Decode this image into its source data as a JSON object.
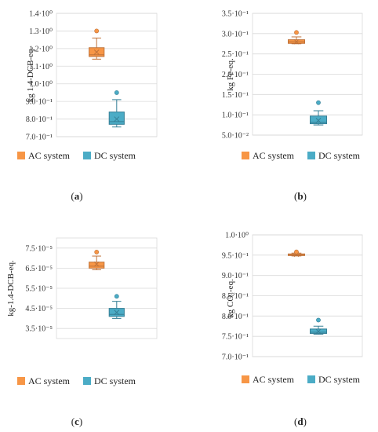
{
  "colors": {
    "ac": "#F79646",
    "dc": "#4BACC6",
    "ac_edge": "#C0733A",
    "dc_edge": "#357F96",
    "grid": "#D9D9D9"
  },
  "chart_data": [
    {
      "id": "a",
      "type": "box",
      "panel_label_prefix": "(",
      "panel_label_letter": "a",
      "panel_label_suffix": ")",
      "ylabel": "kg 1.4-DCB-eq.",
      "ylim": [
        0.7,
        1.4
      ],
      "yticks": [
        {
          "value": 0.7,
          "label": "7.0·10⁻¹"
        },
        {
          "value": 0.8,
          "label": "8.0·10⁻¹"
        },
        {
          "value": 0.9,
          "label": "9.0·10⁻¹"
        },
        {
          "value": 1.0,
          "label": "1.0·10⁰"
        },
        {
          "value": 1.1,
          "label": "1.1·10⁰"
        },
        {
          "value": 1.2,
          "label": "1.2·10⁰"
        },
        {
          "value": 1.3,
          "label": "1.3·10⁰"
        },
        {
          "value": 1.4,
          "label": "1.4·10⁰"
        }
      ],
      "series": [
        {
          "name": "AC system",
          "min": 1.14,
          "q1": 1.155,
          "median": 1.165,
          "q3": 1.205,
          "max": 1.26,
          "mean": 1.18,
          "outliers": [
            1.3
          ]
        },
        {
          "name": "DC system",
          "min": 0.755,
          "q1": 0.77,
          "median": 0.785,
          "q3": 0.84,
          "max": 0.91,
          "mean": 0.8,
          "outliers": [
            0.95
          ]
        }
      ]
    },
    {
      "id": "b",
      "type": "box",
      "panel_label_prefix": "(",
      "panel_label_letter": "b",
      "panel_label_suffix": ")",
      "ylabel": "kg Fe-eq.",
      "ylim": [
        0.05,
        0.35
      ],
      "yticks": [
        {
          "value": 0.05,
          "label": "5.0·10⁻²"
        },
        {
          "value": 0.1,
          "label": "1.0·10⁻¹"
        },
        {
          "value": 0.15,
          "label": "1.5·10⁻¹"
        },
        {
          "value": 0.2,
          "label": "2.0·10⁻¹"
        },
        {
          "value": 0.25,
          "label": "2.5·10⁻¹"
        },
        {
          "value": 0.3,
          "label": "3.0·10⁻¹"
        },
        {
          "value": 0.35,
          "label": "3.5·10⁻¹"
        }
      ],
      "series": [
        {
          "name": "AC system",
          "min": 0.275,
          "q1": 0.276,
          "median": 0.28,
          "q3": 0.285,
          "max": 0.292,
          "mean": 0.28,
          "outliers": [
            0.303
          ]
        },
        {
          "name": "DC system",
          "min": 0.075,
          "q1": 0.078,
          "median": 0.082,
          "q3": 0.097,
          "max": 0.11,
          "mean": 0.086,
          "outliers": [
            0.13
          ]
        }
      ]
    },
    {
      "id": "c",
      "type": "box",
      "panel_label_prefix": "(",
      "panel_label_letter": "c",
      "panel_label_suffix": ")",
      "ylabel": "kg-1.4-DCB-eq.",
      "ylim": [
        3.0,
        8.0
      ],
      "yticks": [
        {
          "value": 3.5,
          "label": "3.5·10⁻⁵"
        },
        {
          "value": 4.5,
          "label": "4.5·10⁻⁵"
        },
        {
          "value": 5.5,
          "label": "5.5·10⁻⁵"
        },
        {
          "value": 6.5,
          "label": "6.5·10⁻⁵"
        },
        {
          "value": 7.5,
          "label": "7.5·10⁻⁵"
        }
      ],
      "series": [
        {
          "name": "AC system",
          "min": 6.42,
          "q1": 6.5,
          "median": 6.6,
          "q3": 6.8,
          "max": 7.1,
          "mean": 6.7,
          "outliers": [
            7.3
          ]
        },
        {
          "name": "DC system",
          "min": 4.0,
          "q1": 4.1,
          "median": 4.2,
          "q3": 4.5,
          "max": 4.85,
          "mean": 4.3,
          "outliers": [
            5.1
          ]
        }
      ]
    },
    {
      "id": "d",
      "type": "box",
      "panel_label_prefix": "(",
      "panel_label_letter": "d",
      "panel_label_suffix": ")",
      "ylabel": "kg CO₂-eq.",
      "ylim": [
        0.7,
        1.0
      ],
      "yticks": [
        {
          "value": 0.7,
          "label": "7.0·10⁻¹"
        },
        {
          "value": 0.75,
          "label": "7.5·10⁻¹"
        },
        {
          "value": 0.8,
          "label": "8.0·10⁻¹"
        },
        {
          "value": 0.85,
          "label": "8.5·10⁻¹"
        },
        {
          "value": 0.9,
          "label": "9.0·10⁻¹"
        },
        {
          "value": 0.95,
          "label": "9.5·10⁻¹"
        },
        {
          "value": 1.0,
          "label": "1.0·10⁰"
        }
      ],
      "series": [
        {
          "name": "AC system",
          "min": 0.948,
          "q1": 0.949,
          "median": 0.951,
          "q3": 0.953,
          "max": 0.955,
          "mean": 0.952,
          "outliers": [
            0.958
          ]
        },
        {
          "name": "DC system",
          "min": 0.755,
          "q1": 0.757,
          "median": 0.76,
          "q3": 0.768,
          "max": 0.775,
          "mean": 0.762,
          "outliers": [
            0.79
          ]
        }
      ]
    }
  ]
}
